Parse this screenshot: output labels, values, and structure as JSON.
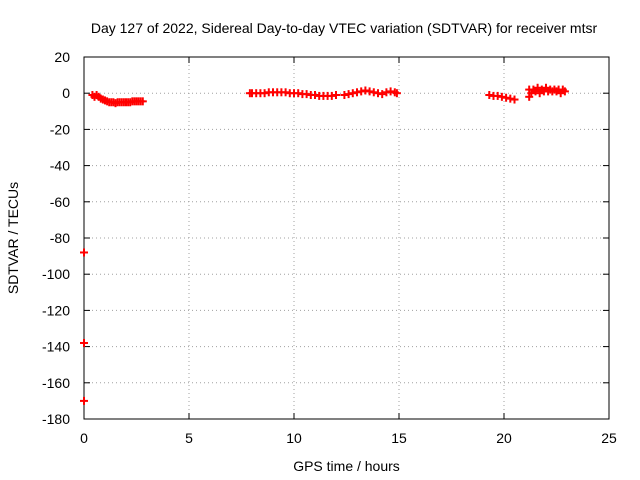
{
  "chart_data": {
    "type": "scatter",
    "title": "Day 127 of 2022, Sidereal Day-to-day VTEC variation (SDTVAR) for receiver mtsr",
    "xlabel": "GPS time / hours",
    "ylabel": "SDTVAR / TECUs",
    "xlim": [
      0,
      25
    ],
    "ylim": [
      -180,
      20
    ],
    "xticks": [
      0,
      5,
      10,
      15,
      20,
      25
    ],
    "yticks": [
      20,
      0,
      -20,
      -40,
      -60,
      -80,
      -100,
      -120,
      -140,
      -160,
      -180
    ],
    "grid": true,
    "series": [
      {
        "name": "SDTVAR",
        "color": "#ff0000",
        "marker": "plus",
        "points": [
          [
            0.0,
            -88
          ],
          [
            0.0,
            -138
          ],
          [
            0.0,
            -170
          ],
          [
            0.4,
            -1
          ],
          [
            0.5,
            -2
          ],
          [
            0.6,
            -1
          ],
          [
            0.7,
            -2
          ],
          [
            0.8,
            -3
          ],
          [
            0.9,
            -3.5
          ],
          [
            1.0,
            -4
          ],
          [
            1.1,
            -4.5
          ],
          [
            1.2,
            -5
          ],
          [
            1.3,
            -5
          ],
          [
            1.4,
            -5
          ],
          [
            1.5,
            -5.5
          ],
          [
            1.6,
            -5
          ],
          [
            1.7,
            -5
          ],
          [
            1.8,
            -5
          ],
          [
            1.9,
            -5
          ],
          [
            2.0,
            -5
          ],
          [
            2.1,
            -5
          ],
          [
            2.2,
            -5
          ],
          [
            2.3,
            -4.5
          ],
          [
            2.4,
            -4.5
          ],
          [
            2.5,
            -4.5
          ],
          [
            2.6,
            -4.5
          ],
          [
            2.7,
            -4.5
          ],
          [
            2.8,
            -4.5
          ],
          [
            7.9,
            0
          ],
          [
            8.0,
            0
          ],
          [
            8.2,
            0
          ],
          [
            8.4,
            0
          ],
          [
            8.6,
            0
          ],
          [
            8.8,
            0.5
          ],
          [
            9.0,
            0.5
          ],
          [
            9.2,
            0.5
          ],
          [
            9.4,
            0.5
          ],
          [
            9.6,
            0.5
          ],
          [
            9.8,
            0
          ],
          [
            10.0,
            0
          ],
          [
            10.2,
            0
          ],
          [
            10.4,
            -0.5
          ],
          [
            10.6,
            -0.5
          ],
          [
            10.8,
            -1
          ],
          [
            11.0,
            -1
          ],
          [
            11.2,
            -1.5
          ],
          [
            11.4,
            -1.5
          ],
          [
            11.6,
            -1.5
          ],
          [
            11.8,
            -1.5
          ],
          [
            12.0,
            -1
          ],
          [
            12.4,
            -1
          ],
          [
            12.6,
            -0.5
          ],
          [
            12.8,
            0
          ],
          [
            13.0,
            0.5
          ],
          [
            13.2,
            1
          ],
          [
            13.4,
            1.5
          ],
          [
            13.6,
            1
          ],
          [
            13.8,
            0.5
          ],
          [
            14.0,
            0
          ],
          [
            14.2,
            -0.5
          ],
          [
            14.4,
            0.5
          ],
          [
            14.6,
            1
          ],
          [
            14.8,
            0.5
          ],
          [
            14.9,
            0
          ],
          [
            19.3,
            -1
          ],
          [
            19.5,
            -1.5
          ],
          [
            19.7,
            -1.5
          ],
          [
            19.9,
            -2
          ],
          [
            20.1,
            -2.5
          ],
          [
            20.3,
            -3
          ],
          [
            20.5,
            -3.5
          ],
          [
            21.2,
            2
          ],
          [
            21.2,
            -2
          ],
          [
            21.3,
            0
          ],
          [
            21.4,
            2
          ],
          [
            21.5,
            1
          ],
          [
            21.6,
            3
          ],
          [
            21.7,
            0
          ],
          [
            21.8,
            2
          ],
          [
            21.9,
            1
          ],
          [
            22.0,
            3
          ],
          [
            22.1,
            1
          ],
          [
            22.2,
            2
          ],
          [
            22.3,
            1
          ],
          [
            22.4,
            2
          ],
          [
            22.5,
            1
          ],
          [
            22.6,
            2
          ],
          [
            22.7,
            0
          ],
          [
            22.8,
            2
          ],
          [
            22.9,
            1
          ]
        ]
      }
    ]
  }
}
